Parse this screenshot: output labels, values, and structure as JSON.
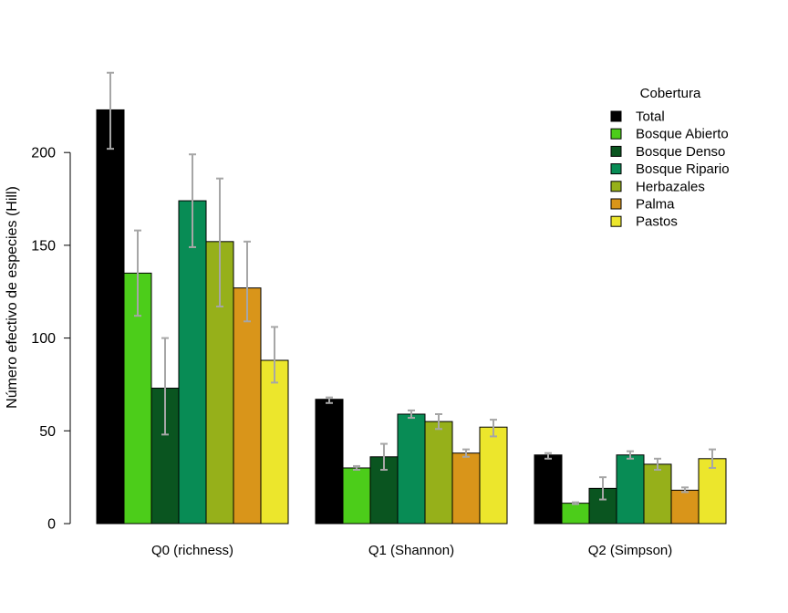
{
  "chart_data": {
    "type": "bar",
    "ylabel": "Número efectivo de especies (Hill)",
    "ylim": [
      0,
      230
    ],
    "yticks": [
      0,
      50,
      100,
      150,
      200
    ],
    "categories": [
      "Q0 (richness)",
      "Q1 (Shannon)",
      "Q2 (Simpson)"
    ],
    "legend_title": "Cobertura",
    "legend_position": "top-right",
    "series": [
      {
        "name": "Total",
        "color": "#000000",
        "values": [
          223,
          67,
          37
        ],
        "err_low": [
          202,
          65,
          35
        ],
        "err_high": [
          243,
          68,
          38
        ]
      },
      {
        "name": "Bosque Abierto",
        "color": "#4ccd1a",
        "values": [
          135,
          30,
          11
        ],
        "err_low": [
          112,
          29,
          10.5
        ],
        "err_high": [
          158,
          31,
          11.5
        ]
      },
      {
        "name": "Bosque Denso",
        "color": "#0a5520",
        "values": [
          73,
          36,
          19
        ],
        "err_low": [
          48,
          29,
          13
        ],
        "err_high": [
          100,
          43,
          25
        ]
      },
      {
        "name": "Bosque Ripario",
        "color": "#088c55",
        "values": [
          174,
          59,
          37
        ],
        "err_low": [
          149,
          57,
          35
        ],
        "err_high": [
          199,
          61,
          39
        ]
      },
      {
        "name": "Herbazales",
        "color": "#96b01a",
        "values": [
          152,
          55,
          32
        ],
        "err_low": [
          117,
          51,
          29
        ],
        "err_high": [
          186,
          59,
          35
        ]
      },
      {
        "name": "Palma",
        "color": "#d9951a",
        "values": [
          127,
          38,
          18
        ],
        "err_low": [
          109,
          36,
          17
        ],
        "err_high": [
          152,
          40,
          19.5
        ]
      },
      {
        "name": "Pastos",
        "color": "#ece62c",
        "values": [
          88,
          52,
          35
        ],
        "err_low": [
          76,
          47,
          30
        ],
        "err_high": [
          106,
          56,
          40
        ]
      }
    ]
  }
}
